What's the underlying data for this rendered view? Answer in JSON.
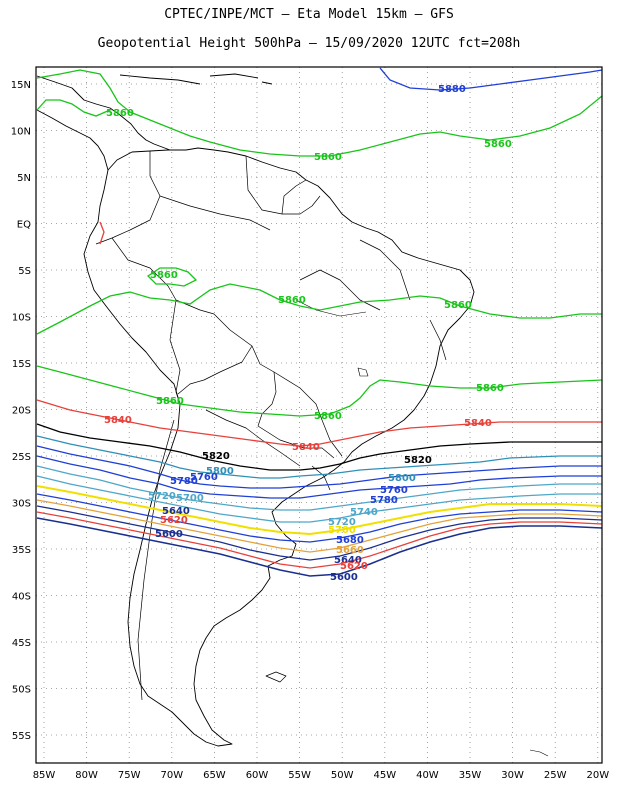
{
  "header": {
    "line1": "CPTEC/INPE/MCT –  Eta Model 15km – GFS",
    "line2": "Geopotential Height 500hPa – 15/09/2020 12UTC fct=208h"
  },
  "axes": {
    "lat_labels": [
      "15N",
      "10N",
      "5N",
      "EQ",
      "5S",
      "10S",
      "15S",
      "20S",
      "25S",
      "30S",
      "35S",
      "40S",
      "45S",
      "50S",
      "55S"
    ],
    "lon_labels": [
      "85W",
      "80W",
      "75W",
      "70W",
      "65W",
      "60W",
      "55W",
      "50W",
      "45W",
      "40W",
      "35W",
      "30W",
      "25W",
      "20W"
    ]
  },
  "colors": {
    "c5880": "#1f3fd6",
    "c5860": "#19c419",
    "c5840": "#e8403a",
    "c5820": "#000000",
    "c5800": "#2f8fb8",
    "c5780": "#1f3fd6",
    "c5760": "#1f3fd6",
    "c5740": "#4ea7c9",
    "c5720": "#4ea7c9",
    "c5700": "#f0e000",
    "c5680": "#1f3fd6",
    "c5660": "#e4a23a",
    "c5640": "#1a2f90",
    "c5620": "#e8403a",
    "c5600": "#1a2f90",
    "coast": "#000000"
  },
  "contour_labels": {
    "l5880": "5880",
    "l5860a": "5860",
    "l5860b": "5860",
    "l5860c": "5860",
    "l5860d": "5860",
    "l5860e": "5860",
    "l5860f": "5860",
    "l5860g": "5860",
    "l5860h": "5860",
    "l5860i": "5860",
    "l5840a": "5840",
    "l5840b": "5840",
    "l5840c": "5840",
    "l5820a": "5820",
    "l5820b": "5820",
    "l5800a": "5800",
    "l5800b": "5800",
    "l5780a": "5780",
    "l5780b": "5780",
    "l5760a": "5760",
    "l5760b": "5760",
    "l5740a": "5740",
    "l5720a": "5720",
    "l5720b": "5720",
    "l5700a": "5700",
    "l5700b": "5700",
    "l5680a": "5680",
    "l5660a": "5660",
    "l5640a": "5640",
    "l5640b": "5640",
    "l5620a": "5620",
    "l5620b": "5620",
    "l5600a": "5600",
    "l5600b": "5600"
  }
}
